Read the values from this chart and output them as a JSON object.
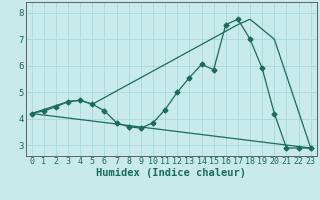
{
  "title": "",
  "xlabel": "Humidex (Indice chaleur)",
  "bg_color": "#c8eaea",
  "grid_color": "#a8d8d8",
  "line_color": "#1a6b5a",
  "xlim": [
    -0.5,
    23.5
  ],
  "ylim": [
    2.6,
    8.4
  ],
  "xticks": [
    0,
    1,
    2,
    3,
    4,
    5,
    6,
    7,
    8,
    9,
    10,
    11,
    12,
    13,
    14,
    15,
    16,
    17,
    18,
    19,
    20,
    21,
    22,
    23
  ],
  "yticks": [
    3,
    4,
    5,
    6,
    7,
    8
  ],
  "line1_x": [
    0,
    1,
    2,
    3,
    4,
    5,
    6,
    7,
    8,
    9,
    10,
    11,
    12,
    13,
    14,
    15,
    16,
    17,
    18,
    19,
    20,
    21,
    22,
    23
  ],
  "line1_y": [
    4.2,
    4.3,
    4.45,
    4.65,
    4.7,
    4.55,
    4.3,
    3.85,
    3.7,
    3.65,
    3.85,
    4.35,
    5.0,
    5.55,
    6.05,
    5.85,
    7.55,
    7.75,
    7.0,
    5.9,
    4.2,
    2.9,
    2.9,
    2.9
  ],
  "line2_x": [
    0,
    23
  ],
  "line2_y": [
    4.2,
    2.9
  ],
  "line3_x": [
    0,
    3,
    4,
    5,
    17,
    18,
    20,
    23
  ],
  "line3_y": [
    4.2,
    4.65,
    4.7,
    4.55,
    7.55,
    7.75,
    7.0,
    2.9
  ],
  "marker_size": 2.5,
  "line_width": 0.9,
  "tick_fontsize": 6.0,
  "xlabel_fontsize": 7.5,
  "xlabel_fontweight": "bold"
}
